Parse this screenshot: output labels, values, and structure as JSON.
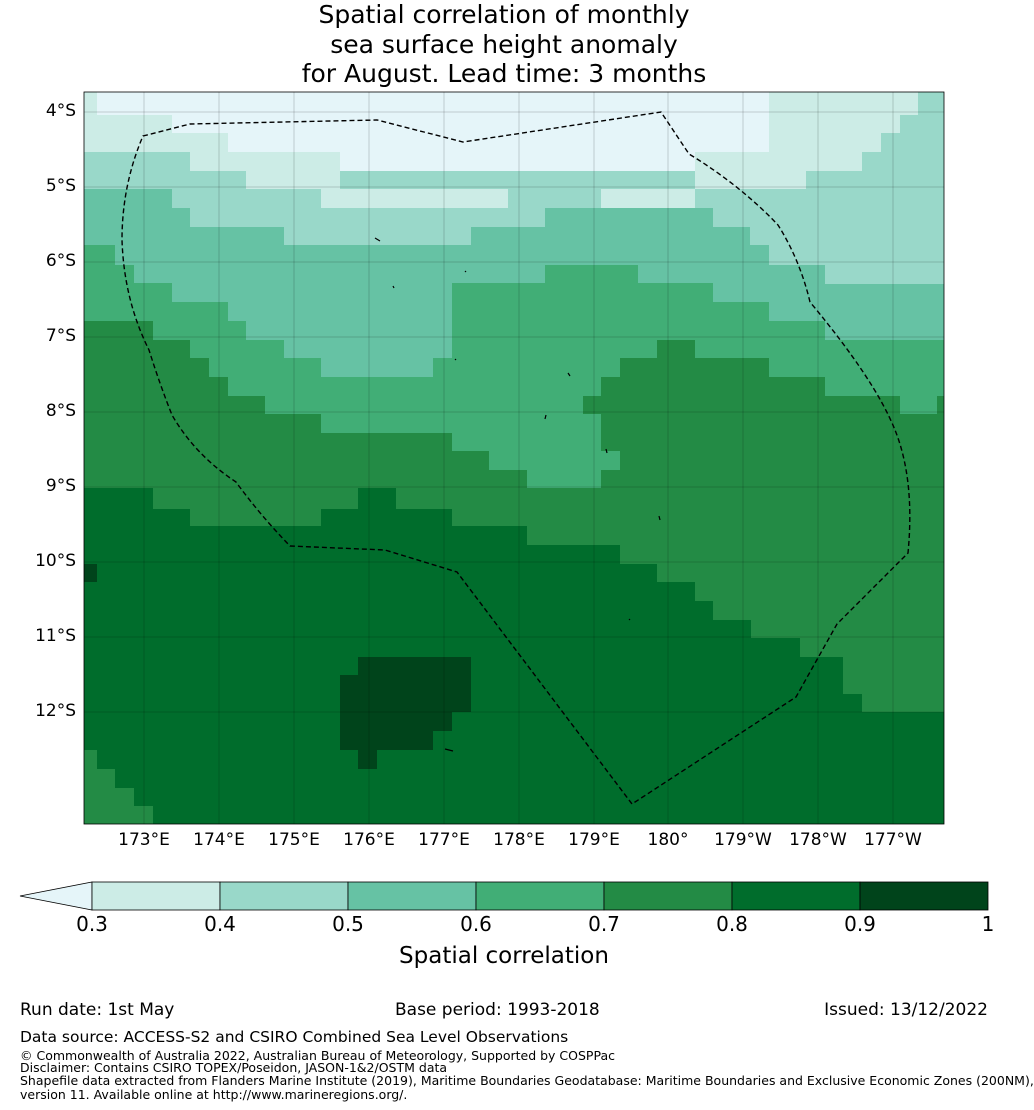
{
  "title": {
    "line1": "Spatial correlation of monthly",
    "line2": "sea surface height anomaly",
    "line3": "for August. Lead time: 3 months"
  },
  "map": {
    "lat_labels": [
      "4°S",
      "5°S",
      "6°S",
      "7°S",
      "8°S",
      "9°S",
      "10°S",
      "11°S",
      "12°S"
    ],
    "lon_labels": [
      "173°E",
      "174°E",
      "175°E",
      "176°E",
      "177°E",
      "178°E",
      "179°E",
      "180°",
      "179°W",
      "178°W",
      "177°W"
    ],
    "colors": [
      "#e5f5f9",
      "#ccece6",
      "#99d8c9",
      "#66c2a4",
      "#41ae76",
      "#238b45",
      "#006d2c",
      "#00441b"
    ],
    "boundary_style": "dashed black line (maritime boundary / EEZ)"
  },
  "colorbar": {
    "ticks": [
      "0.3",
      "0.4",
      "0.5",
      "0.6",
      "0.7",
      "0.8",
      "0.9",
      "1"
    ],
    "label": "Spatial correlation",
    "extend": "min"
  },
  "footer": {
    "run_date": "Run date: 1st May",
    "base_period": "Base period: 1993-2018",
    "issued": "Issued: 13/12/2022",
    "data_source": "Data source: ACCESS-S2 and CSIRO Combined Sea Level Observations",
    "copyright": "© Commonwealth of Australia 2022, Australian Bureau of Meteorology, Supported by COSPPac",
    "disclaimer": "Disclaimer: Contains CSIRO TOPEX/Poseidon, JASON-1&2/OSTM data",
    "shapefile1": "Shapefile data extracted from Flanders Marine Institute (2019), Maritime Boundaries Geodatabase: Maritime Boundaries and Exclusive Economic Zones (200NM),",
    "shapefile2": "version 11. Available online at http://www.marineregions.org/."
  }
}
